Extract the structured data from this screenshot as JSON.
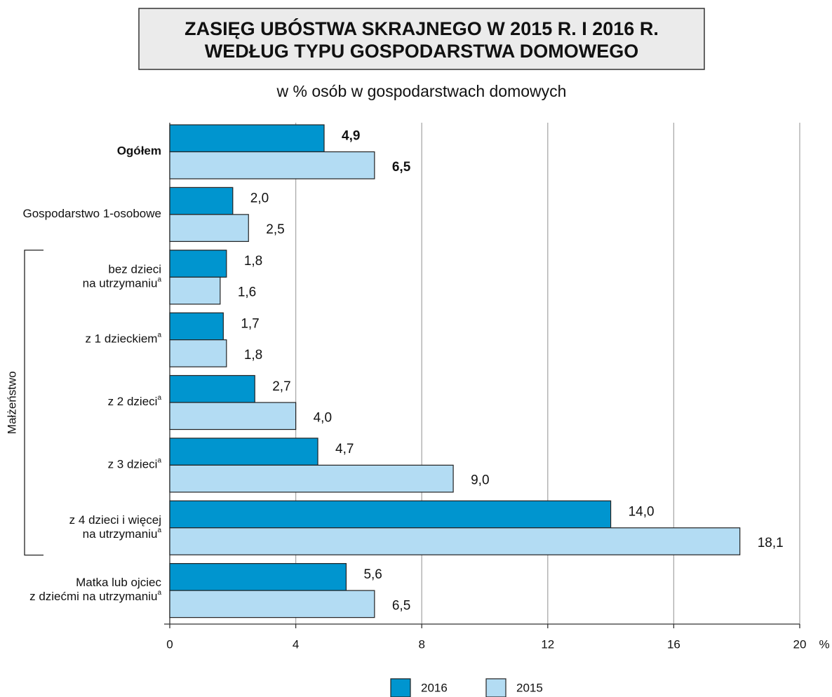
{
  "chart_data": {
    "type": "hbar",
    "title": [
      "ZASIĘG UBÓSTWA SKRAJNEGO W 2015 R. I 2016 R.",
      "WEDŁUG TYPU GOSPODARSTWA DOMOWEGO"
    ],
    "subtitle": "w % osób w gospodarstwach domowych",
    "categories": [
      [
        "Ogółem"
      ],
      [
        "Gospodarstwo 1-osobowe"
      ],
      [
        "bez dzieci",
        "na utrzymaniu"
      ],
      [
        "z 1 dzieckiem"
      ],
      [
        "z 2 dzieci"
      ],
      [
        "z 3 dzieci"
      ],
      [
        "z 4 dzieci i więcej",
        "na utrzymaniu"
      ],
      [
        "Matka lub ojciec",
        "z dziećmi na utrzymaniu"
      ]
    ],
    "category_notes": [
      null,
      null,
      "a",
      "a",
      "a",
      "a",
      "a",
      "a"
    ],
    "groups": [
      {
        "label": "Małżeństwo",
        "from": 2,
        "to": 6
      }
    ],
    "series": [
      {
        "name": "2016",
        "color": "#0095cf",
        "values": [
          4.9,
          2.0,
          1.8,
          1.7,
          2.7,
          4.7,
          14.0,
          5.6
        ],
        "value_labels": [
          "4,9",
          "2,0",
          "1,8",
          "1,7",
          "2,7",
          "4,7",
          "14,0",
          "5,6"
        ]
      },
      {
        "name": "2015",
        "color": "#b3dcf3",
        "values": [
          6.5,
          2.5,
          1.6,
          1.8,
          4.0,
          9.0,
          18.1,
          6.5
        ],
        "value_labels": [
          "6,5",
          "2,5",
          "1,6",
          "1,8",
          "4,0",
          "9,0",
          "18,1",
          "6,5"
        ]
      }
    ],
    "xlim": [
      0,
      20
    ],
    "xticks": [
      0,
      4,
      8,
      12,
      16,
      20
    ],
    "xunit": "%",
    "grid": true
  }
}
